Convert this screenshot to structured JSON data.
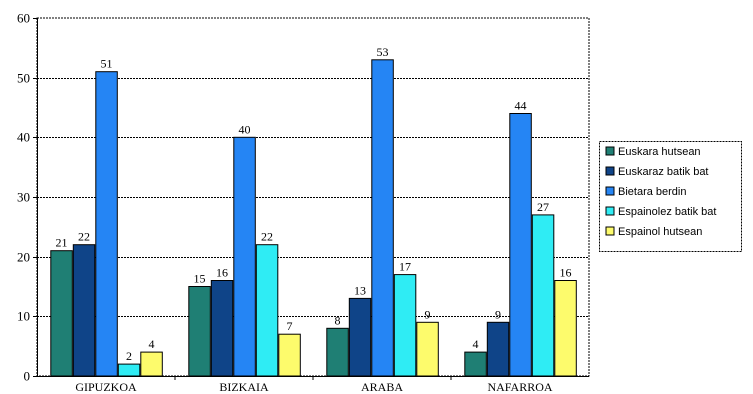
{
  "chart_data": {
    "type": "bar",
    "categories": [
      "GIPUZKOA",
      "BIZKAIA",
      "ARABA",
      "NAFARROA"
    ],
    "series": [
      {
        "name": "Euskara hutsean",
        "color": "#1f7f74",
        "values": [
          21,
          15,
          8,
          4
        ]
      },
      {
        "name": "Euskaraz batik bat",
        "color": "#0f4488",
        "values": [
          22,
          16,
          13,
          9
        ]
      },
      {
        "name": "Bietara berdin",
        "color": "#2585f4",
        "values": [
          51,
          40,
          53,
          44
        ]
      },
      {
        "name": "Espainolez batik bat",
        "color": "#2fecf4",
        "values": [
          2,
          22,
          17,
          27
        ]
      },
      {
        "name": "Espainol hutsean",
        "color": "#fdfb6c",
        "values": [
          4,
          7,
          9,
          16
        ]
      }
    ],
    "ylim": [
      0,
      60
    ],
    "yticks": [
      0,
      10,
      20,
      30,
      40,
      50,
      60
    ],
    "grid": true,
    "legend_position": "right",
    "data_labels": true,
    "title": "",
    "xlabel": "",
    "ylabel": ""
  }
}
